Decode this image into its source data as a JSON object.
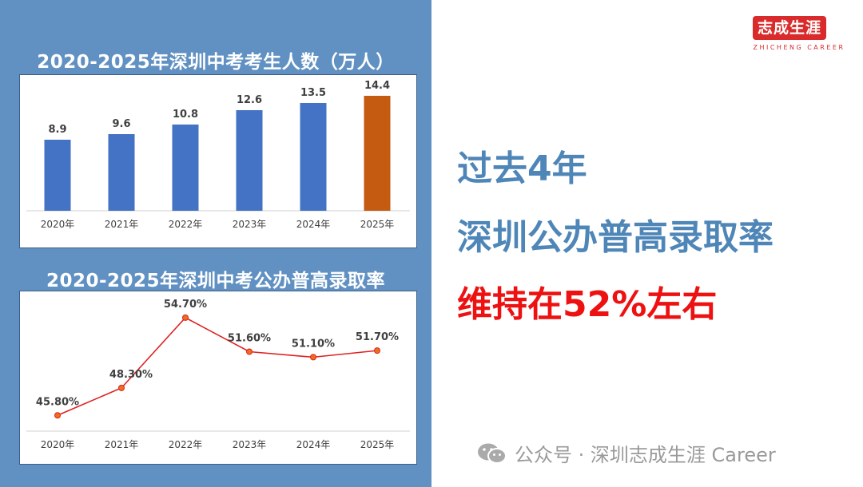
{
  "chart_data": [
    {
      "type": "bar",
      "title": "2020-2025年深圳中考考生人数（万人）",
      "categories": [
        "2020年",
        "2021年",
        "2022年",
        "2023年",
        "2024年",
        "2025年"
      ],
      "values": [
        8.9,
        9.6,
        10.8,
        12.6,
        13.5,
        14.4
      ],
      "labels": [
        "8.9",
        "9.6",
        "10.8",
        "12.6",
        "13.5",
        "14.4"
      ],
      "ylim": [
        0,
        15
      ],
      "colors": [
        "#4472c4",
        "#4472c4",
        "#4472c4",
        "#4472c4",
        "#4472c4",
        "#c55a11"
      ],
      "grid": false,
      "legend": "none"
    },
    {
      "type": "line",
      "title": "2020-2025年深圳中考公办普高录取率",
      "categories": [
        "2020年",
        "2021年",
        "2022年",
        "2023年",
        "2024年",
        "2025年"
      ],
      "values": [
        45.8,
        48.3,
        54.7,
        51.6,
        51.1,
        51.7
      ],
      "labels": [
        "45.80%",
        "48.30%",
        "54.70%",
        "51.60%",
        "51.10%",
        "51.70%"
      ],
      "ylim": [
        44,
        56
      ],
      "line_color": "#e02020",
      "marker_color": "#e8721c",
      "grid": false,
      "legend": "none"
    }
  ],
  "logo": {
    "text": "志成生涯",
    "sub": "ZHICHENG CAREER"
  },
  "headline": {
    "line1": "过去4年",
    "line2": "深圳公办普高录取率",
    "line3": "维持在52%左右"
  },
  "watermark": {
    "icon": "wechat-icon",
    "text": "公众号 · 深圳志成生涯 Career"
  },
  "colors": {
    "panel": "#6191c2",
    "accent_blue": "#4f86b8",
    "accent_red": "#ee1111"
  }
}
